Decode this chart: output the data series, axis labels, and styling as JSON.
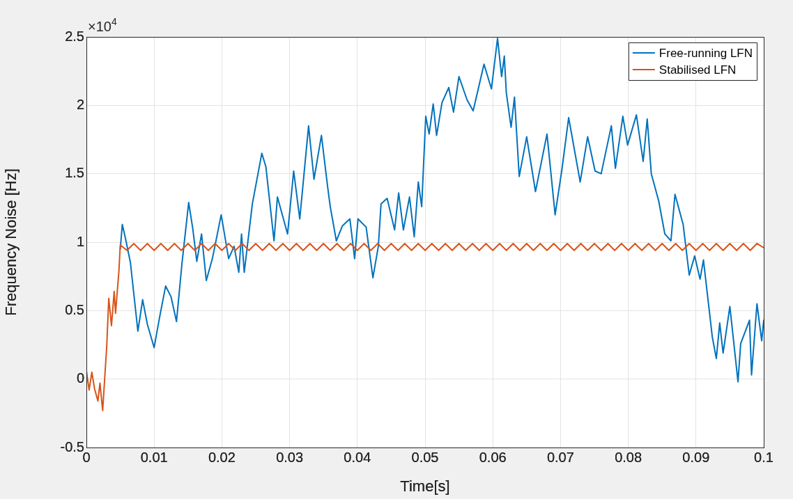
{
  "chart_data": {
    "type": "line",
    "xlabel": "Time[s]",
    "ylabel": "Frequency Noise [Hz]",
    "annotations": [
      "×10$^{4}$"
    ],
    "xlim": [
      0,
      0.1
    ],
    "xticks": [
      0,
      0.01,
      0.02,
      0.03,
      0.04,
      0.05,
      0.06,
      0.07,
      0.08,
      0.09,
      0.1
    ],
    "ylim": [
      -0.5,
      2.5
    ],
    "yticks": [
      -0.5,
      0,
      0.5,
      1,
      1.5,
      2,
      2.5
    ],
    "grid": true,
    "legend": "top right",
    "marker": "none",
    "line_style": "solid",
    "series": [
      {
        "name": "Free-running LFN",
        "color": "#0072bd",
        "x": [
          0.005,
          0.0053,
          0.0058,
          0.0065,
          0.0076,
          0.0083,
          0.009,
          0.01,
          0.0108,
          0.0117,
          0.0125,
          0.0133,
          0.0141,
          0.0151,
          0.0157,
          0.0163,
          0.017,
          0.0177,
          0.0186,
          0.0199,
          0.021,
          0.0218,
          0.0225,
          0.0229,
          0.0233,
          0.0245,
          0.0259,
          0.0265,
          0.0277,
          0.0282,
          0.0297,
          0.0306,
          0.0315,
          0.0328,
          0.0336,
          0.0347,
          0.0356,
          0.036,
          0.0369,
          0.0378,
          0.0389,
          0.0396,
          0.0401,
          0.0413,
          0.0423,
          0.0431,
          0.0435,
          0.0444,
          0.0455,
          0.0461,
          0.0468,
          0.0477,
          0.0484,
          0.049,
          0.0495,
          0.0501,
          0.0506,
          0.0512,
          0.0517,
          0.0525,
          0.0535,
          0.0542,
          0.055,
          0.0562,
          0.0571,
          0.0587,
          0.0598,
          0.0607,
          0.0613,
          0.0617,
          0.062,
          0.0627,
          0.0632,
          0.0639,
          0.065,
          0.0663,
          0.068,
          0.0692,
          0.0702,
          0.0712,
          0.0729,
          0.074,
          0.0751,
          0.076,
          0.0775,
          0.0781,
          0.0792,
          0.0799,
          0.0812,
          0.0822,
          0.0828,
          0.0834,
          0.0845,
          0.0854,
          0.0863,
          0.0869,
          0.0881,
          0.089,
          0.0898,
          0.0906,
          0.0911,
          0.0924,
          0.093,
          0.0935,
          0.094,
          0.095,
          0.0962,
          0.0966,
          0.0979,
          0.0982,
          0.099,
          0.0997,
          0.1
        ],
        "values": [
          0.95,
          1.13,
          1.02,
          0.85,
          0.35,
          0.58,
          0.4,
          0.23,
          0.45,
          0.68,
          0.6,
          0.42,
          0.84,
          1.29,
          1.1,
          0.86,
          1.06,
          0.72,
          0.88,
          1.2,
          0.88,
          0.97,
          0.78,
          1.06,
          0.78,
          1.28,
          1.65,
          1.55,
          1.01,
          1.33,
          1.06,
          1.52,
          1.17,
          1.85,
          1.46,
          1.78,
          1.41,
          1.26,
          1.01,
          1.12,
          1.17,
          0.88,
          1.17,
          1.11,
          0.74,
          0.97,
          1.28,
          1.32,
          1.09,
          1.36,
          1.09,
          1.33,
          1.04,
          1.44,
          1.26,
          1.92,
          1.79,
          2.01,
          1.78,
          2.02,
          2.13,
          1.95,
          2.21,
          2.04,
          1.96,
          2.3,
          2.12,
          2.49,
          2.21,
          2.36,
          2.09,
          1.84,
          2.06,
          1.48,
          1.77,
          1.37,
          1.79,
          1.2,
          1.53,
          1.91,
          1.44,
          1.77,
          1.52,
          1.5,
          1.85,
          1.54,
          1.92,
          1.71,
          1.93,
          1.59,
          1.9,
          1.5,
          1.3,
          1.06,
          1.01,
          1.35,
          1.13,
          0.76,
          0.9,
          0.73,
          0.87,
          0.31,
          0.15,
          0.41,
          0.19,
          0.53,
          -0.02,
          0.26,
          0.43,
          0.03,
          0.55,
          0.28,
          0.43
        ]
      },
      {
        "name": "Stabilised LFN",
        "color": "#d95319",
        "x": [
          0,
          0.0004,
          0.0008,
          0.0012,
          0.0017,
          0.002,
          0.0024,
          0.003,
          0.0033,
          0.0037,
          0.0041,
          0.0043,
          0.0048,
          0.005,
          0.006,
          0.007,
          0.008,
          0.009,
          0.01,
          0.011,
          0.012,
          0.013,
          0.014,
          0.015,
          0.016,
          0.017,
          0.018,
          0.019,
          0.02,
          0.021,
          0.022,
          0.023,
          0.024,
          0.025,
          0.026,
          0.027,
          0.028,
          0.029,
          0.03,
          0.031,
          0.032,
          0.033,
          0.034,
          0.035,
          0.036,
          0.037,
          0.038,
          0.039,
          0.04,
          0.041,
          0.042,
          0.043,
          0.044,
          0.045,
          0.046,
          0.047,
          0.048,
          0.049,
          0.05,
          0.051,
          0.052,
          0.053,
          0.054,
          0.055,
          0.056,
          0.057,
          0.058,
          0.059,
          0.06,
          0.061,
          0.062,
          0.063,
          0.064,
          0.065,
          0.066,
          0.067,
          0.068,
          0.069,
          0.07,
          0.071,
          0.072,
          0.073,
          0.074,
          0.075,
          0.076,
          0.077,
          0.078,
          0.079,
          0.08,
          0.081,
          0.082,
          0.083,
          0.084,
          0.085,
          0.086,
          0.087,
          0.088,
          0.089,
          0.09,
          0.091,
          0.092,
          0.093,
          0.094,
          0.095,
          0.096,
          0.097,
          0.098,
          0.099,
          0.1
        ],
        "values": [
          0.06,
          -0.08,
          0.05,
          -0.07,
          -0.16,
          -0.03,
          -0.23,
          0.24,
          0.59,
          0.39,
          0.64,
          0.48,
          0.79,
          0.98,
          0.94,
          0.99,
          0.94,
          0.99,
          0.94,
          0.99,
          0.94,
          0.99,
          0.94,
          0.99,
          0.94,
          0.99,
          0.94,
          0.99,
          0.94,
          0.99,
          0.94,
          0.99,
          0.94,
          0.99,
          0.94,
          0.99,
          0.94,
          0.99,
          0.94,
          0.99,
          0.94,
          0.99,
          0.94,
          0.99,
          0.94,
          0.99,
          0.94,
          0.99,
          0.94,
          0.99,
          0.94,
          0.99,
          0.94,
          0.99,
          0.94,
          0.99,
          0.94,
          0.99,
          0.94,
          0.99,
          0.94,
          0.99,
          0.94,
          0.99,
          0.94,
          0.99,
          0.94,
          0.99,
          0.94,
          0.99,
          0.94,
          0.99,
          0.94,
          0.99,
          0.94,
          0.99,
          0.94,
          0.99,
          0.94,
          0.99,
          0.94,
          0.99,
          0.94,
          0.99,
          0.94,
          0.99,
          0.94,
          0.99,
          0.94,
          0.99,
          0.94,
          0.99,
          0.94,
          0.99,
          0.94,
          0.99,
          0.94,
          0.99,
          0.94,
          0.99,
          0.94,
          0.99,
          0.94,
          0.99,
          0.94,
          0.99,
          0.94,
          0.99,
          0.96
        ]
      }
    ]
  }
}
